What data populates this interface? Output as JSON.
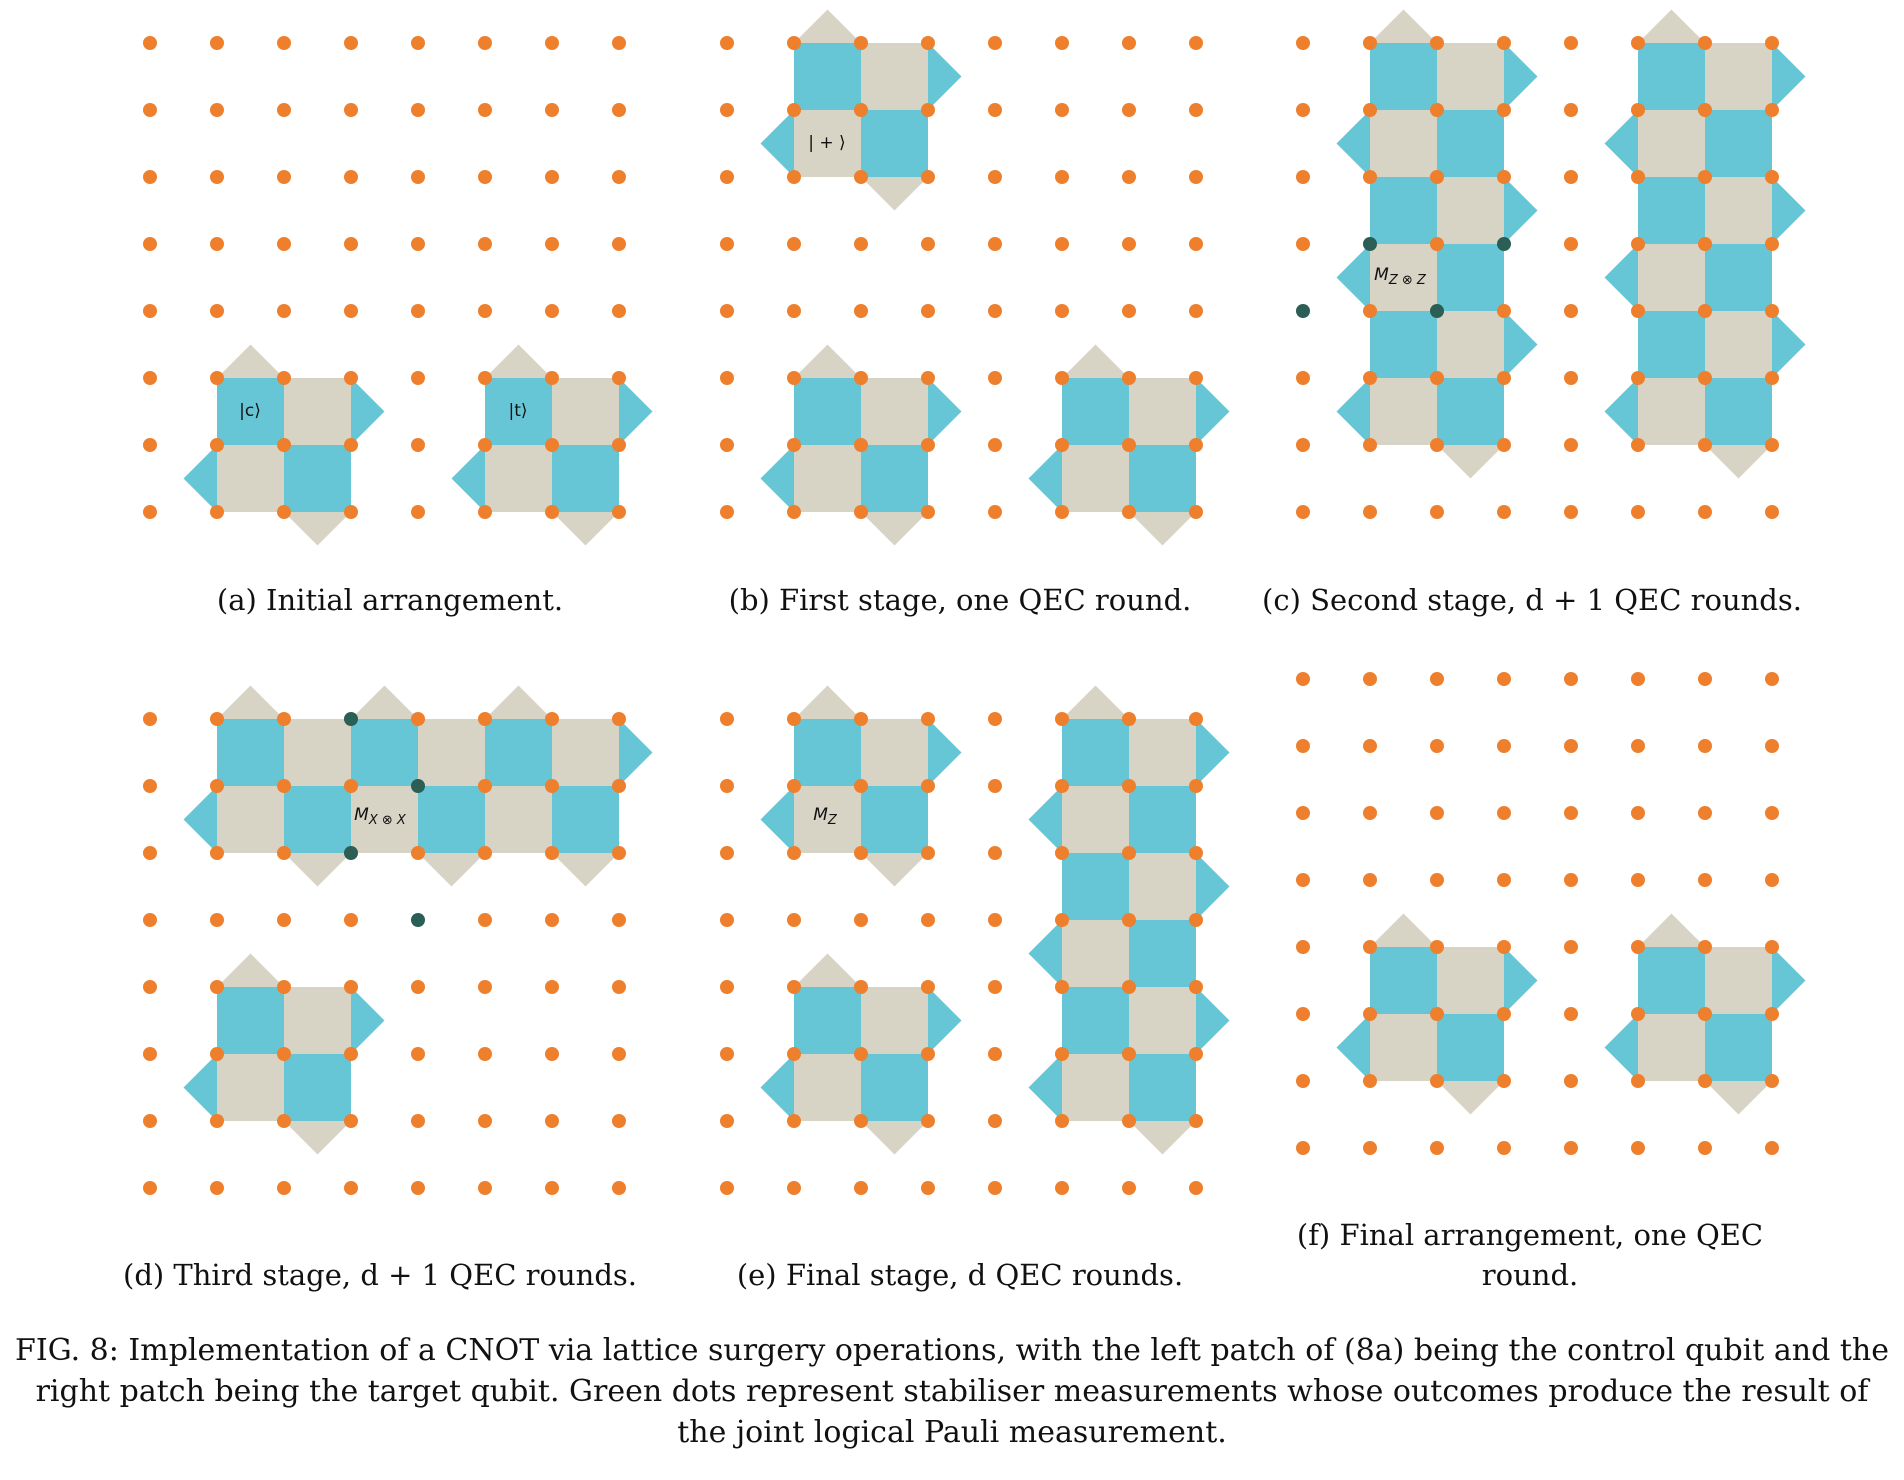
{
  "colors": {
    "dot": "#ee7f2d",
    "measure_dot": "#2b5e55",
    "cyan": "#67c6d6",
    "beige": "#d7d3c5"
  },
  "panels": [
    {
      "id": "a",
      "caption": "(a) Initial arrangement.",
      "labels": [
        "|c⟩",
        "|t⟩"
      ]
    },
    {
      "id": "b",
      "caption": "(b) First stage, one QEC round.",
      "labels": [
        "| + ⟩"
      ]
    },
    {
      "id": "c",
      "caption": "(c) Second stage, d + 1 QEC rounds.",
      "labels": [
        "M",
        "Z ⊗ Z"
      ]
    },
    {
      "id": "d",
      "caption": "(d) Third stage, d + 1 QEC rounds.",
      "labels": [
        "M",
        "X ⊗ X"
      ]
    },
    {
      "id": "e",
      "caption": "(e) Final stage, d QEC rounds.",
      "labels": [
        "M",
        "Z"
      ]
    },
    {
      "id": "f",
      "caption": "(f) Final arrangement, one QEC round.",
      "labels": []
    }
  ],
  "caption": {
    "text": "FIG. 8: Implementation of a CNOT via lattice surgery operations, with the left patch of (8a) being the control qubit and the right patch being the target qubit. Green dots represent stabiliser measurements whose outcomes produce the result of the joint logical Pauli measurement."
  }
}
